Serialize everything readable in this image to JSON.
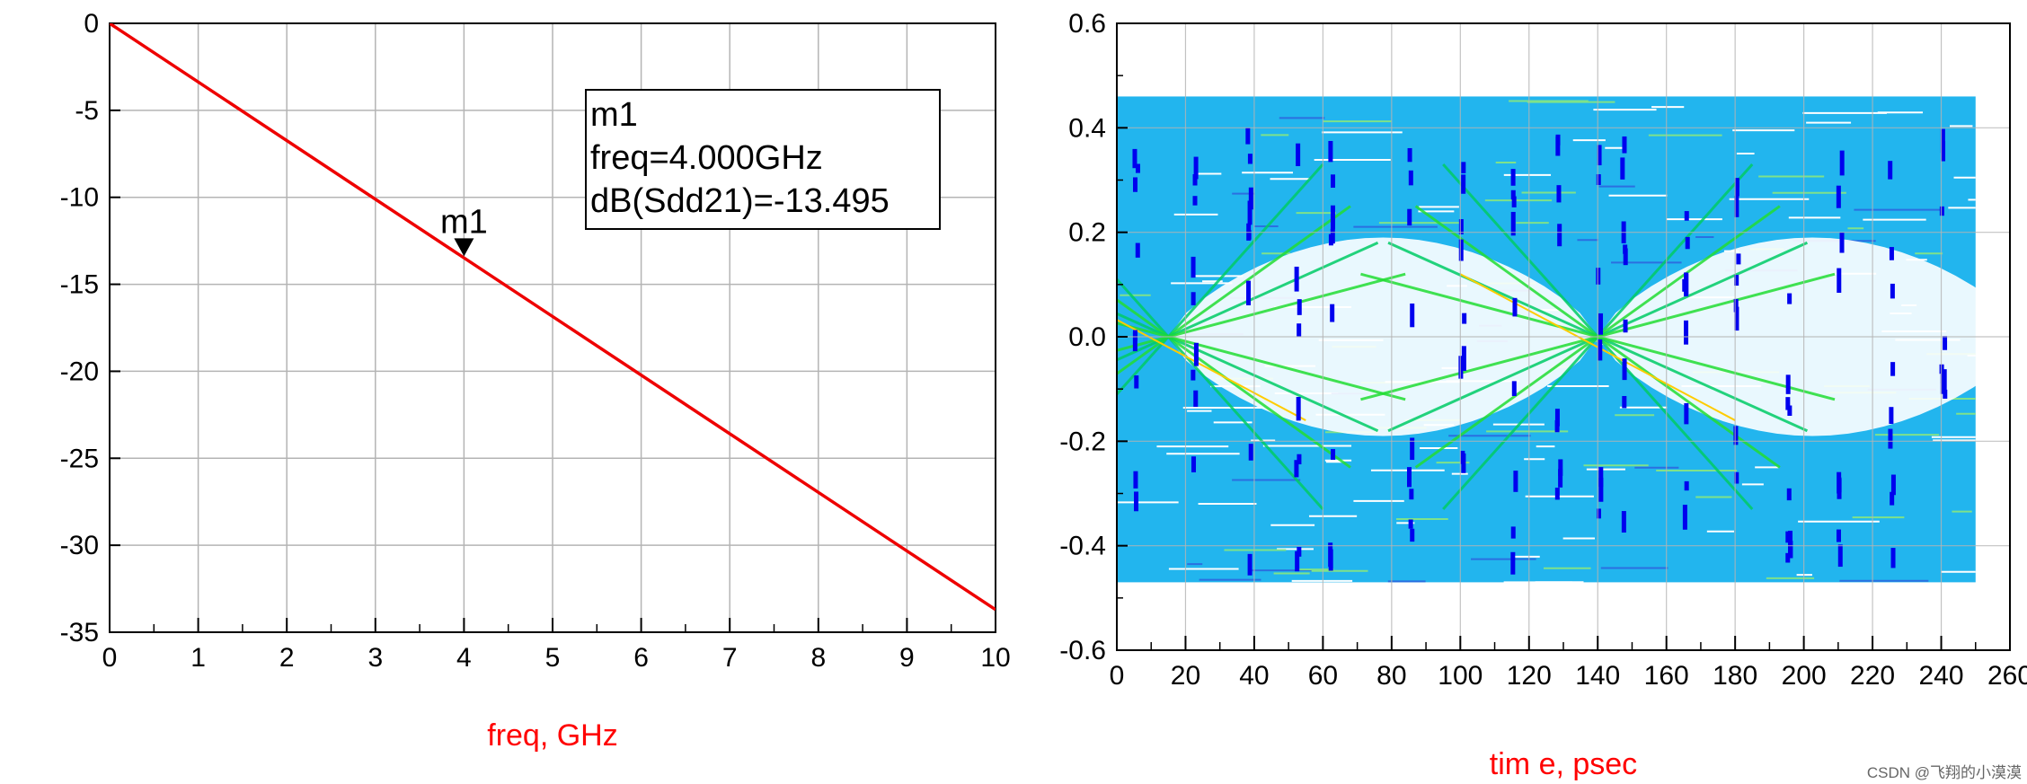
{
  "chart_data": [
    {
      "type": "line",
      "xlabel": "freq, GHz",
      "ylabel": "",
      "xlim": [
        0,
        10
      ],
      "ylim": [
        -35,
        0
      ],
      "xticks": [
        "0",
        "1",
        "2",
        "3",
        "4",
        "5",
        "6",
        "7",
        "8",
        "9",
        "10"
      ],
      "yticks": [
        "0",
        "-5",
        "-10",
        "-15",
        "-20",
        "-25",
        "-30",
        "-35"
      ],
      "grid": true,
      "series": [
        {
          "color": "#ee0000",
          "x": [
            0,
            10
          ],
          "y": [
            0,
            -33.7
          ]
        }
      ],
      "marker": {
        "name": "m1",
        "x": 4.0,
        "y": -13.495,
        "lines": [
          "m1",
          "freq=4.000GHz",
          "dB(Sdd21)=-13.495"
        ]
      }
    },
    {
      "type": "scatter",
      "xlabel": "tim e, psec",
      "ylabel": "",
      "xlim": [
        0,
        260
      ],
      "ylim": [
        -0.6,
        0.6
      ],
      "xticks": [
        "0",
        "20",
        "40",
        "60",
        "80",
        "100",
        "120",
        "140",
        "160",
        "180",
        "200",
        "220",
        "240",
        "260"
      ],
      "yticks": [
        "0.6",
        "0.4",
        "0.2",
        "0.0",
        "-0.2",
        "-0.4",
        "-0.6"
      ],
      "grid": true,
      "eye": {
        "t_start": 0,
        "t_end": 250,
        "v_top": 0.46,
        "v_bottom": -0.47,
        "crossing_times": [
          15,
          140
        ],
        "crossing_voltage": 0.0,
        "inner_opening_amplitude": 0.19,
        "colors": {
          "fill": "#22b5ee",
          "mid": "#22dd33",
          "dense": "#0000ee",
          "hot": "#ffcc00"
        }
      }
    }
  ],
  "watermark": "CSDN @飞翔的小漠漠"
}
